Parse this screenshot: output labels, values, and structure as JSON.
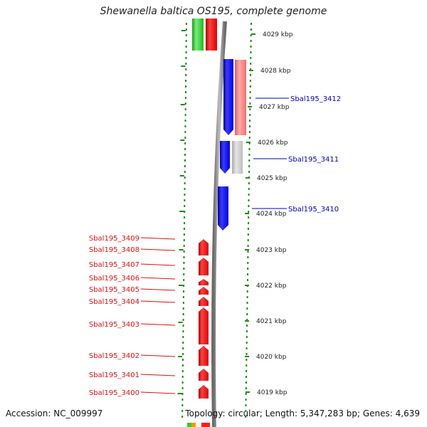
{
  "title": "Shewanella baltica OS195, complete genome",
  "accession": "Accession: NC_009997",
  "topology": "Topology: circular; Length: 5,347,283 bp; Genes: 4,639",
  "colors": {
    "ruler_dots": "#1a8c1a",
    "backbone": "#8c8c8c",
    "minus_gene": "#ff1a1a",
    "plus_gene": "#1a1aff",
    "pink_gene": "#f08080",
    "gray_gene": "#c8c8c8",
    "green_gene": "#33cc33",
    "left_label": "#e01010",
    "right_label": "#0000cc"
  },
  "kbp_ticks": [
    "4029 kbp",
    "4028 kbp",
    "4027 kbp",
    "4026 kbp",
    "4025 kbp",
    "4024 kbp",
    "4023 kbp",
    "4022 kbp",
    "4021 kbp",
    "4020 kbp",
    "4019 kbp"
  ],
  "left_genes": [
    "Sbal195_3409",
    "Sbal195_3408",
    "Sbal195_3407",
    "Sbal195_3406",
    "Sbal195_3405",
    "Sbal195_3404",
    "Sbal195_3403",
    "Sbal195_3402",
    "Sbal195_3401",
    "Sbal195_3400"
  ],
  "right_genes": [
    "Sbal195_3412",
    "Sbal195_3411",
    "Sbal195_3410"
  ]
}
